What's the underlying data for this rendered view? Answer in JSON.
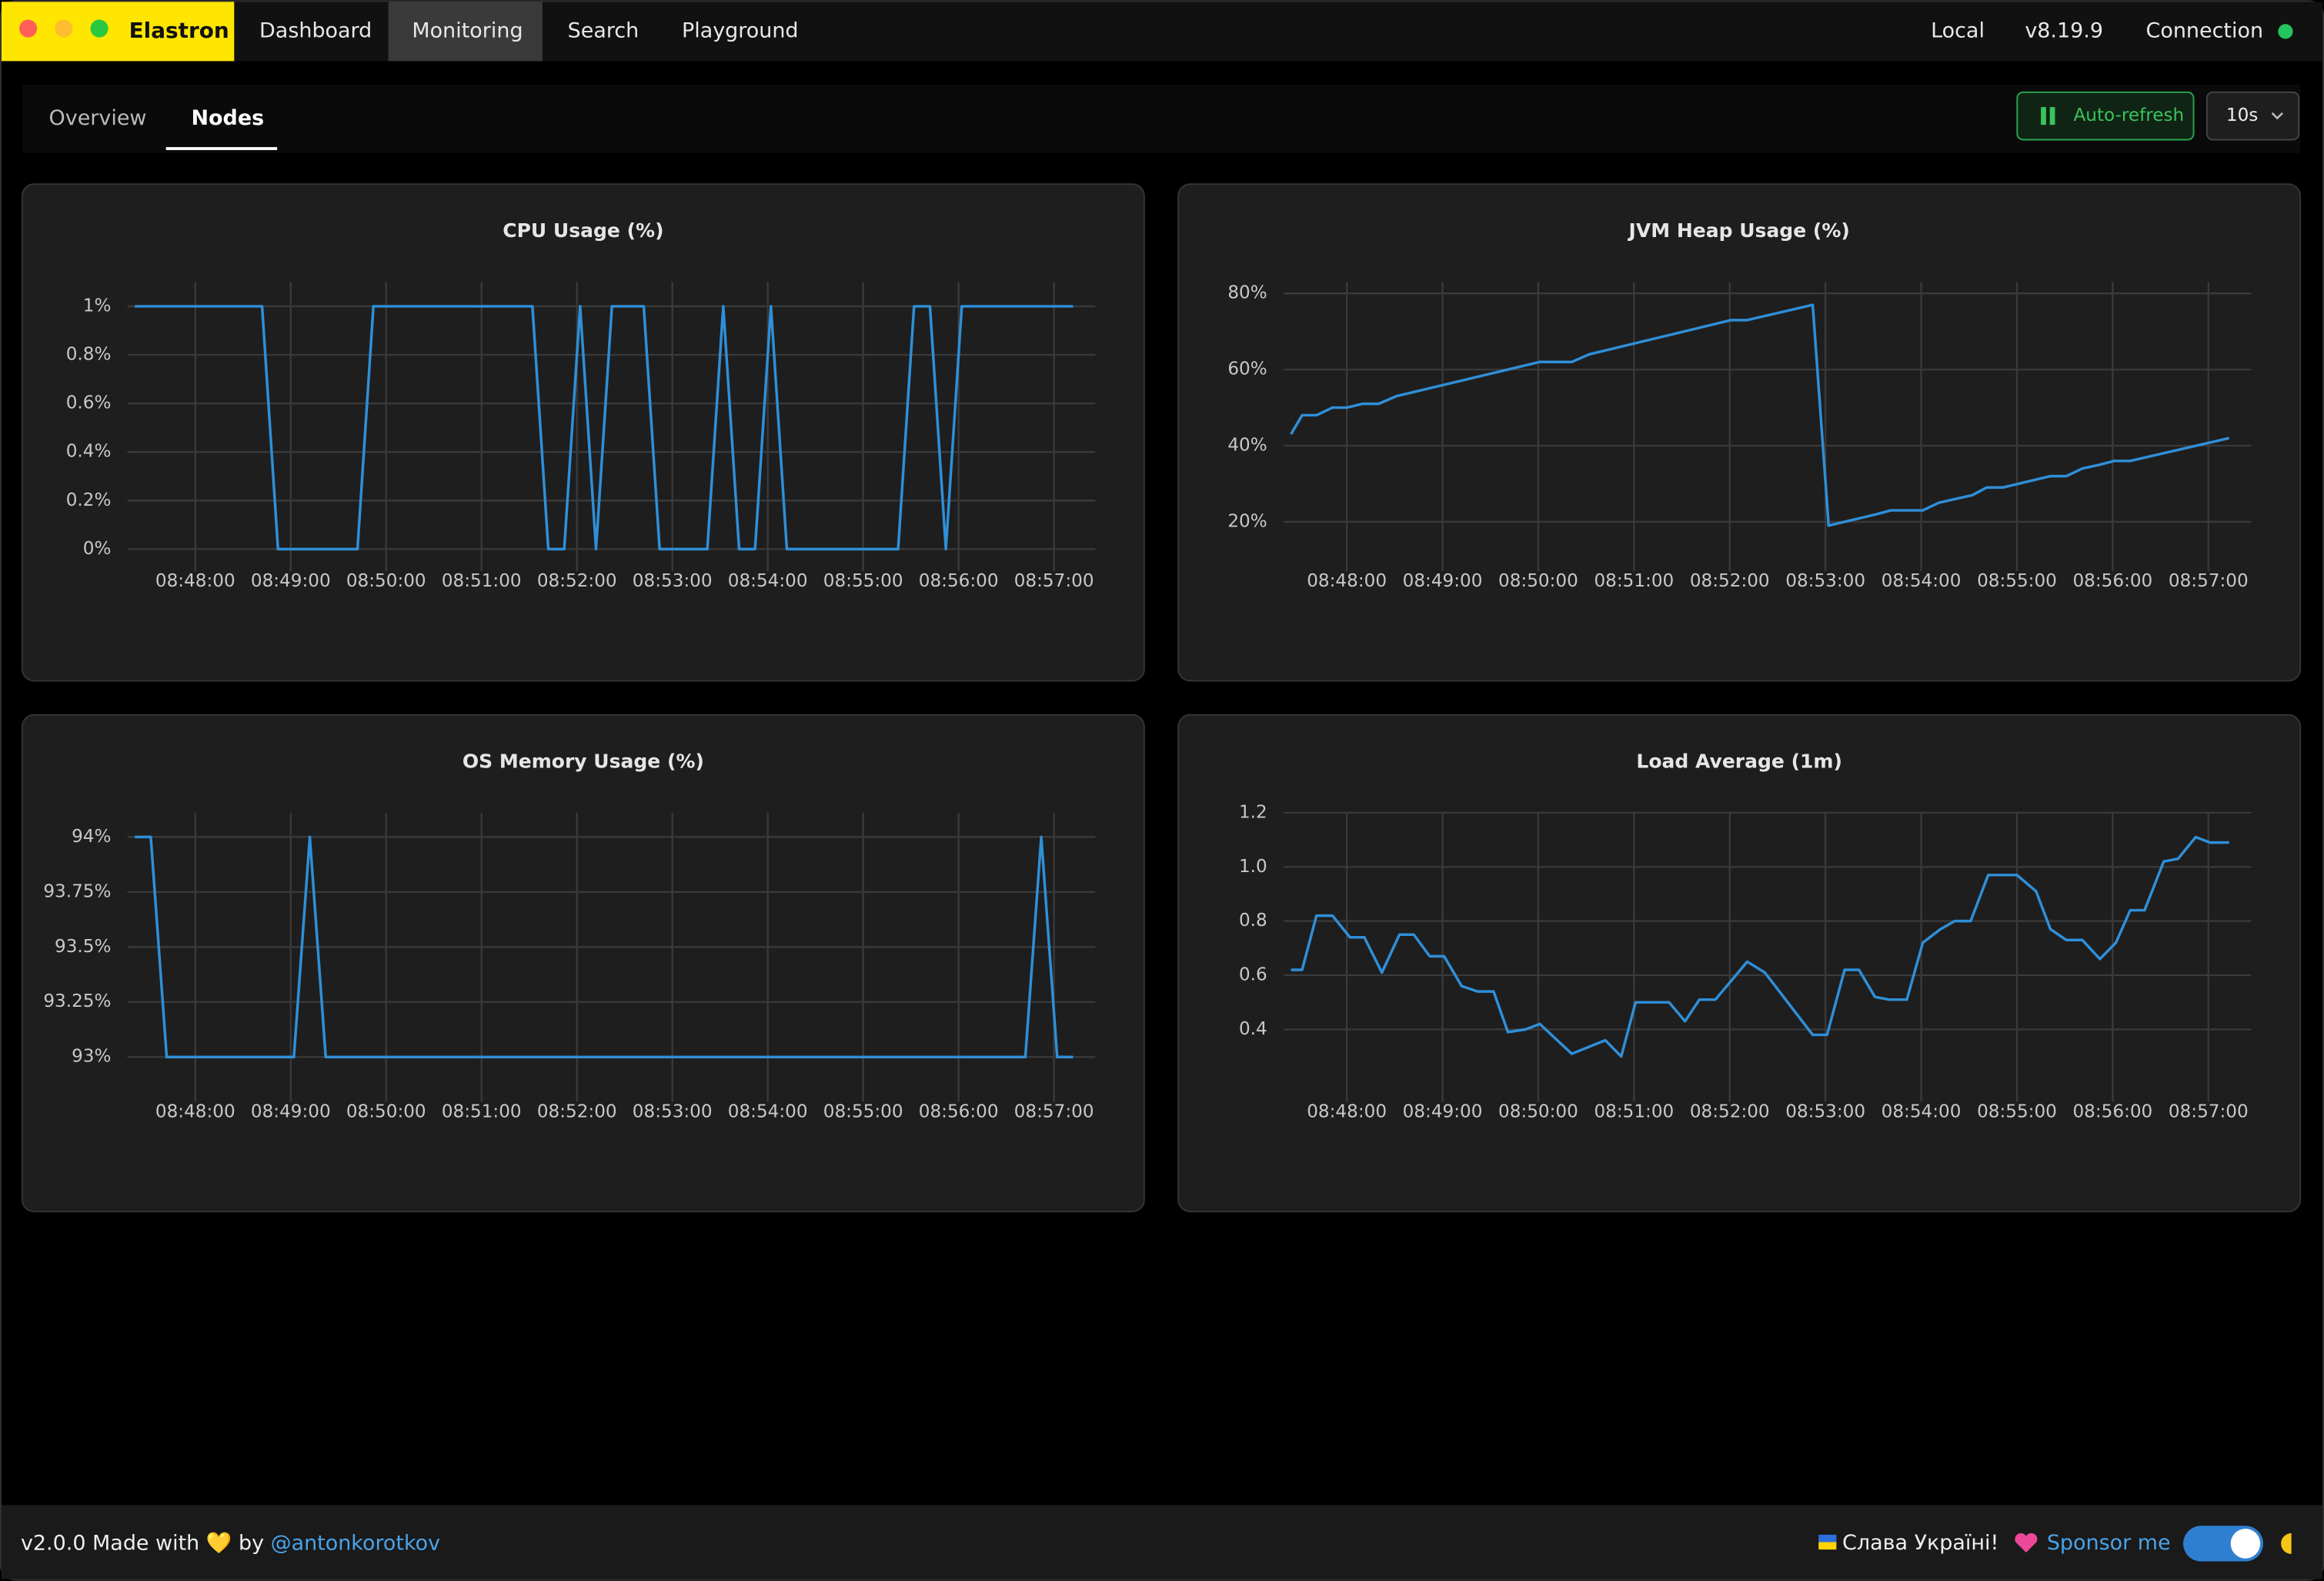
{
  "app": {
    "name": "Elastron",
    "nav": [
      "Dashboard",
      "Monitoring",
      "Search",
      "Playground"
    ],
    "active_nav": 1,
    "cluster": "Local",
    "version": "v8.19.9",
    "connection": "Connection"
  },
  "tabs": {
    "items": [
      "Overview",
      "Nodes"
    ],
    "active": 1
  },
  "controls": {
    "auto_refresh": "Auto-refresh",
    "interval": "10s"
  },
  "footer": {
    "made_with": "v2.0.0 Made with 💛 by",
    "author": "@antonkorotkov",
    "ukraine": "Слава Україні!",
    "sponsor": "Sponsor me"
  },
  "chart_data": [
    {
      "type": "line",
      "title": "CPU Usage (%)",
      "color": "#2f8fd8",
      "x": [
        "08:47:22",
        "08:48:42",
        "08:48:52",
        "08:49:42",
        "08:49:52",
        "08:51:32",
        "08:51:42",
        "08:51:52",
        "08:52:02",
        "08:52:12",
        "08:52:22",
        "08:52:42",
        "08:52:52",
        "08:53:22",
        "08:53:32",
        "08:53:42",
        "08:53:52",
        "08:54:02",
        "08:54:12",
        "08:55:22",
        "08:55:32",
        "08:55:42",
        "08:55:52",
        "08:56:02",
        "08:57:12"
      ],
      "values": [
        1,
        1,
        0,
        0,
        1,
        1,
        0,
        0,
        1,
        0,
        1,
        1,
        0,
        0,
        1,
        0,
        0,
        1,
        0,
        0,
        1,
        1,
        0,
        1,
        1
      ],
      "xlim": [
        "08:47:22",
        "08:57:12"
      ],
      "xticks": [
        "08:48:00",
        "08:49:00",
        "08:50:00",
        "08:51:00",
        "08:52:00",
        "08:53:00",
        "08:54:00",
        "08:55:00",
        "08:56:00",
        "08:57:00"
      ],
      "ylim": [
        -0.06,
        1.1
      ],
      "yticks": [
        {
          "value": 0,
          "label": "0%"
        },
        {
          "value": 0.2,
          "label": "0.2%"
        },
        {
          "value": 0.4,
          "label": "0.4%"
        },
        {
          "value": 0.6,
          "label": "0.6%"
        },
        {
          "value": 0.8,
          "label": "0.8%"
        },
        {
          "value": 1,
          "label": "1%"
        }
      ],
      "grid": true
    },
    {
      "type": "line",
      "title": "JVM Heap Usage (%)",
      "color": "#2f8fd8",
      "x": [
        "08:47:25",
        "08:47:32",
        "08:47:41",
        "08:47:51",
        "08:48:00",
        "08:48:10",
        "08:48:20",
        "08:48:31",
        "08:50:01",
        "08:50:21",
        "08:50:32",
        "08:52:01",
        "08:52:11",
        "08:52:52",
        "08:53:02",
        "08:53:32",
        "08:53:41",
        "08:54:01",
        "08:54:11",
        "08:54:32",
        "08:54:41",
        "08:54:51",
        "08:55:21",
        "08:55:31",
        "08:55:41",
        "08:55:52",
        "08:56:01",
        "08:56:11",
        "08:57:13"
      ],
      "values": [
        43,
        48,
        48,
        50,
        50,
        51,
        51,
        53,
        62,
        62,
        64,
        73,
        73,
        77,
        19,
        22,
        23,
        23,
        25,
        27,
        29,
        29,
        32,
        32,
        34,
        35,
        36,
        36,
        42
      ],
      "xlim": [
        "08:47:25",
        "08:57:13"
      ],
      "xticks": [
        "08:48:00",
        "08:49:00",
        "08:50:00",
        "08:51:00",
        "08:52:00",
        "08:53:00",
        "08:54:00",
        "08:55:00",
        "08:56:00",
        "08:57:00"
      ],
      "ylim": [
        9,
        83
      ],
      "yticks": [
        {
          "value": 20,
          "label": "20%"
        },
        {
          "value": 40,
          "label": "40%"
        },
        {
          "value": 60,
          "label": "60%"
        },
        {
          "value": 80,
          "label": "80%"
        }
      ],
      "grid": true
    },
    {
      "type": "line",
      "title": "OS Memory Usage (%)",
      "color": "#2f8fd8",
      "x": [
        "08:47:22",
        "08:47:32",
        "08:47:42",
        "08:49:02",
        "08:49:12",
        "08:49:22",
        "08:56:42",
        "08:56:52",
        "08:57:02",
        "08:57:12"
      ],
      "values": [
        94,
        94,
        93,
        93,
        94,
        93,
        93,
        94,
        93,
        93
      ],
      "xlim": [
        "08:47:22",
        "08:57:12"
      ],
      "xticks": [
        "08:48:00",
        "08:49:00",
        "08:50:00",
        "08:51:00",
        "08:52:00",
        "08:53:00",
        "08:54:00",
        "08:55:00",
        "08:56:00",
        "08:57:00"
      ],
      "ylim": [
        92.83,
        94.11
      ],
      "yticks": [
        {
          "value": 93,
          "label": "93%"
        },
        {
          "value": 93.25,
          "label": "93.25%"
        },
        {
          "value": 93.5,
          "label": "93.5%"
        },
        {
          "value": 93.75,
          "label": "93.75%"
        },
        {
          "value": 94,
          "label": "94%"
        }
      ],
      "grid": true
    },
    {
      "type": "line",
      "title": "Load Average (1m)",
      "color": "#2f8fd8",
      "x": [
        "08:47:25",
        "08:47:32",
        "08:47:41",
        "08:47:51",
        "08:48:02",
        "08:48:11",
        "08:48:22",
        "08:48:33",
        "08:48:42",
        "08:48:52",
        "08:49:01",
        "08:49:12",
        "08:49:22",
        "08:49:32",
        "08:49:41",
        "08:49:52",
        "08:50:01",
        "08:50:21",
        "08:50:42",
        "08:50:52",
        "08:51:01",
        "08:51:22",
        "08:51:32",
        "08:51:41",
        "08:51:51",
        "08:52:11",
        "08:52:22",
        "08:52:52",
        "08:53:01",
        "08:53:12",
        "08:53:21",
        "08:53:31",
        "08:53:40",
        "08:53:51",
        "08:54:01",
        "08:54:12",
        "08:54:21",
        "08:54:31",
        "08:54:42",
        "08:55:00",
        "08:55:12",
        "08:55:21",
        "08:55:31",
        "08:55:41",
        "08:55:52",
        "08:56:02",
        "08:56:11",
        "08:56:20",
        "08:56:32",
        "08:56:41",
        "08:56:52",
        "08:57:01",
        "08:57:13"
      ],
      "values": [
        0.62,
        0.62,
        0.82,
        0.82,
        0.74,
        0.74,
        0.61,
        0.75,
        0.75,
        0.67,
        0.67,
        0.56,
        0.54,
        0.54,
        0.39,
        0.4,
        0.42,
        0.31,
        0.36,
        0.3,
        0.5,
        0.5,
        0.43,
        0.51,
        0.51,
        0.65,
        0.61,
        0.38,
        0.38,
        0.62,
        0.62,
        0.52,
        0.51,
        0.51,
        0.72,
        0.77,
        0.8,
        0.8,
        0.97,
        0.97,
        0.91,
        0.77,
        0.73,
        0.73,
        0.66,
        0.72,
        0.84,
        0.84,
        1.02,
        1.03,
        1.11,
        1.09,
        1.09
      ],
      "xlim": [
        "08:47:25",
        "08:57:13"
      ],
      "xticks": [
        "08:48:00",
        "08:49:00",
        "08:50:00",
        "08:51:00",
        "08:52:00",
        "08:53:00",
        "08:54:00",
        "08:55:00",
        "08:56:00",
        "08:57:00"
      ],
      "ylim": [
        0.16,
        1.2
      ],
      "yticks": [
        0.4,
        0.6,
        0.8,
        {
          "value": 1,
          "label": "1.0"
        },
        1.2
      ],
      "grid": true
    }
  ]
}
